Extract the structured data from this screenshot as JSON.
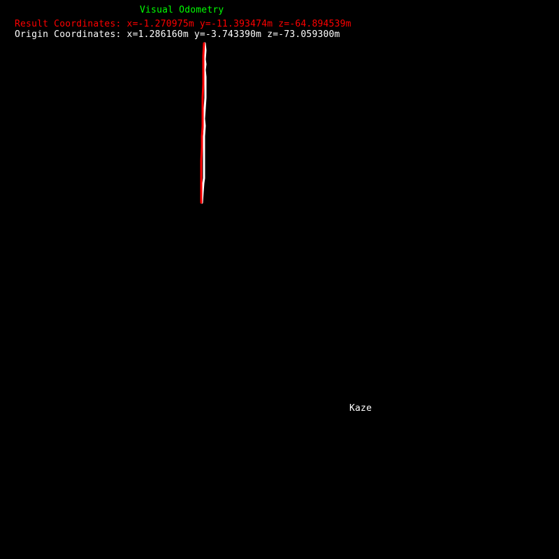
{
  "window": {
    "title": "Visual Odometry",
    "method": "Kaze"
  },
  "readouts": {
    "result": {
      "prefix": "Result Coordinates:",
      "x": "x=-1.270975m",
      "y": "y=-11.393474m",
      "z": "z=-64.894539m"
    },
    "origin": {
      "prefix": "Origin Coordinates:",
      "x": "x=1.286160m",
      "y": "y=-3.743390m",
      "z": "z=-73.059300m"
    }
  },
  "colors": {
    "background": "#000000",
    "title": "#00ff00",
    "result": "#ff0000",
    "origin": "#ffffff",
    "method": "#ffffff",
    "estimated_path": "#ff0000",
    "ground_truth_path": "#ffffff"
  }
}
